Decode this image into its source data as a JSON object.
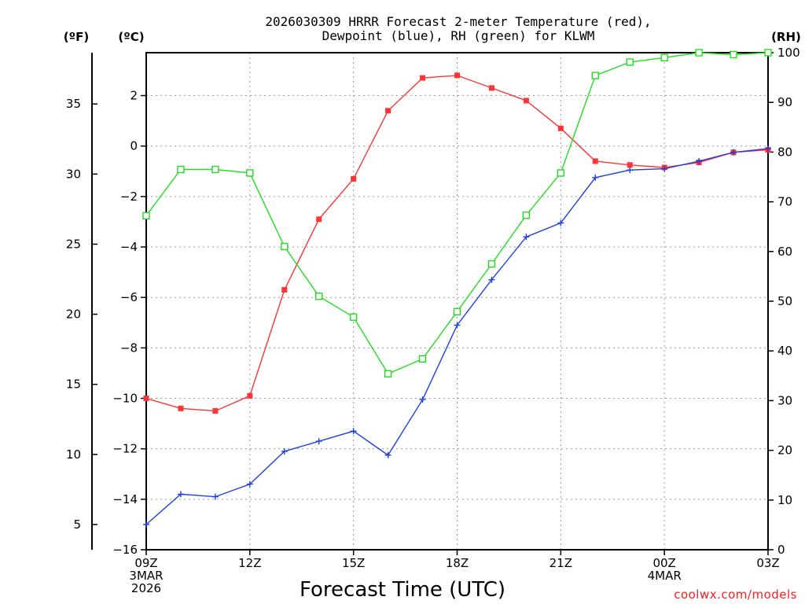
{
  "chart_data": {
    "type": "line",
    "title_lines": [
      "2026030309 HRRR Forecast 2-meter Temperature (red),",
      "Dewpoint (blue), RH (green) for KLWM"
    ],
    "xlabel": "Forecast Time (UTC)",
    "credit": "coolwx.com/models",
    "units": {
      "fahrenheit": "(ºF)",
      "celsius": "(ºC)",
      "rh": "(RH)"
    },
    "x_hours": [
      0,
      1,
      2,
      3,
      4,
      5,
      6,
      7,
      8,
      9,
      10,
      11,
      12,
      13,
      14,
      15,
      16,
      17,
      18
    ],
    "x_range": [
      0,
      18
    ],
    "x_ticks": [
      {
        "hour": 0,
        "lines": [
          "09Z",
          "3MAR",
          "2026"
        ]
      },
      {
        "hour": 3,
        "lines": [
          "12Z"
        ]
      },
      {
        "hour": 6,
        "lines": [
          "15Z"
        ]
      },
      {
        "hour": 9,
        "lines": [
          "18Z"
        ]
      },
      {
        "hour": 12,
        "lines": [
          "21Z"
        ]
      },
      {
        "hour": 15,
        "lines": [
          "00Z",
          "4MAR"
        ]
      },
      {
        "hour": 18,
        "lines": [
          "03Z"
        ]
      }
    ],
    "celsius_axis": {
      "range": [
        -16,
        3.7
      ],
      "ticks": [
        2,
        0,
        -2,
        -4,
        -6,
        -8,
        -10,
        -12,
        -14,
        -16
      ]
    },
    "fahrenheit_axis": {
      "ticks": [
        35,
        30,
        25,
        20,
        15,
        10,
        5
      ]
    },
    "rh_axis": {
      "range": [
        0,
        100
      ],
      "ticks": [
        100,
        90,
        80,
        70,
        60,
        50,
        40,
        30,
        20,
        10,
        0
      ]
    },
    "series": [
      {
        "name": "Temperature",
        "axis": "celsius",
        "color": "#ff3333",
        "marker": "filled-square",
        "values": [
          -10.0,
          -10.4,
          -10.5,
          -9.9,
          -5.7,
          -2.9,
          -1.3,
          1.4,
          2.7,
          2.8,
          2.3,
          1.8,
          0.7,
          -0.6,
          -0.75,
          -0.85,
          -0.65,
          -0.25,
          -0.15
        ]
      },
      {
        "name": "Dewpoint",
        "axis": "celsius",
        "color": "#1f3fe0",
        "marker": "plus",
        "values": [
          -15.0,
          -13.8,
          -13.9,
          -13.4,
          -12.1,
          -11.7,
          -11.3,
          -12.25,
          -10.05,
          -7.1,
          -5.3,
          -3.6,
          -3.05,
          -1.25,
          -0.95,
          -0.9,
          -0.6,
          -0.25,
          -0.1
        ]
      },
      {
        "name": "RH",
        "axis": "rh",
        "color": "#22dd22",
        "marker": "open-square",
        "values": [
          67.2,
          76.5,
          76.5,
          75.8,
          61.0,
          51.0,
          46.8,
          35.4,
          38.4,
          47.9,
          57.5,
          67.3,
          75.8,
          95.4,
          98.1,
          99.0,
          100.0,
          99.6,
          100.0
        ]
      }
    ]
  }
}
